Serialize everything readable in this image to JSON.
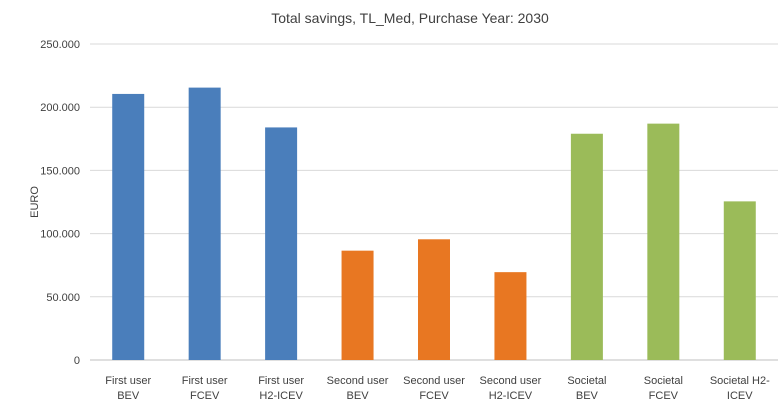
{
  "chart_data": {
    "type": "bar",
    "title": "Total savings, TL_Med, Purchase Year: 2030",
    "xlabel": "",
    "ylabel": "EURO",
    "ylim": [
      0,
      250000
    ],
    "yticks": [
      0,
      50000,
      100000,
      150000,
      200000,
      250000
    ],
    "ytick_labels": [
      "0",
      "50.000",
      "100.000",
      "150.000",
      "200.000",
      "250.000"
    ],
    "grid": true,
    "legend": "none",
    "categories": [
      [
        "First user",
        "BEV"
      ],
      [
        "First user",
        "FCEV"
      ],
      [
        "First user",
        "H2-ICEV"
      ],
      [
        "Second user",
        "BEV"
      ],
      [
        "Second user",
        "FCEV"
      ],
      [
        "Second user",
        "H2-ICEV"
      ],
      [
        "Societal",
        "BEV"
      ],
      [
        "Societal",
        "FCEV"
      ],
      [
        "Societal H2-",
        "ICEV"
      ]
    ],
    "values": [
      210500,
      215500,
      184000,
      86500,
      95500,
      69500,
      179000,
      187000,
      125500
    ],
    "colors": [
      "#4a7ebb",
      "#4a7ebb",
      "#4a7ebb",
      "#e87722",
      "#e87722",
      "#e87722",
      "#9bbb59",
      "#9bbb59",
      "#9bbb59"
    ]
  }
}
